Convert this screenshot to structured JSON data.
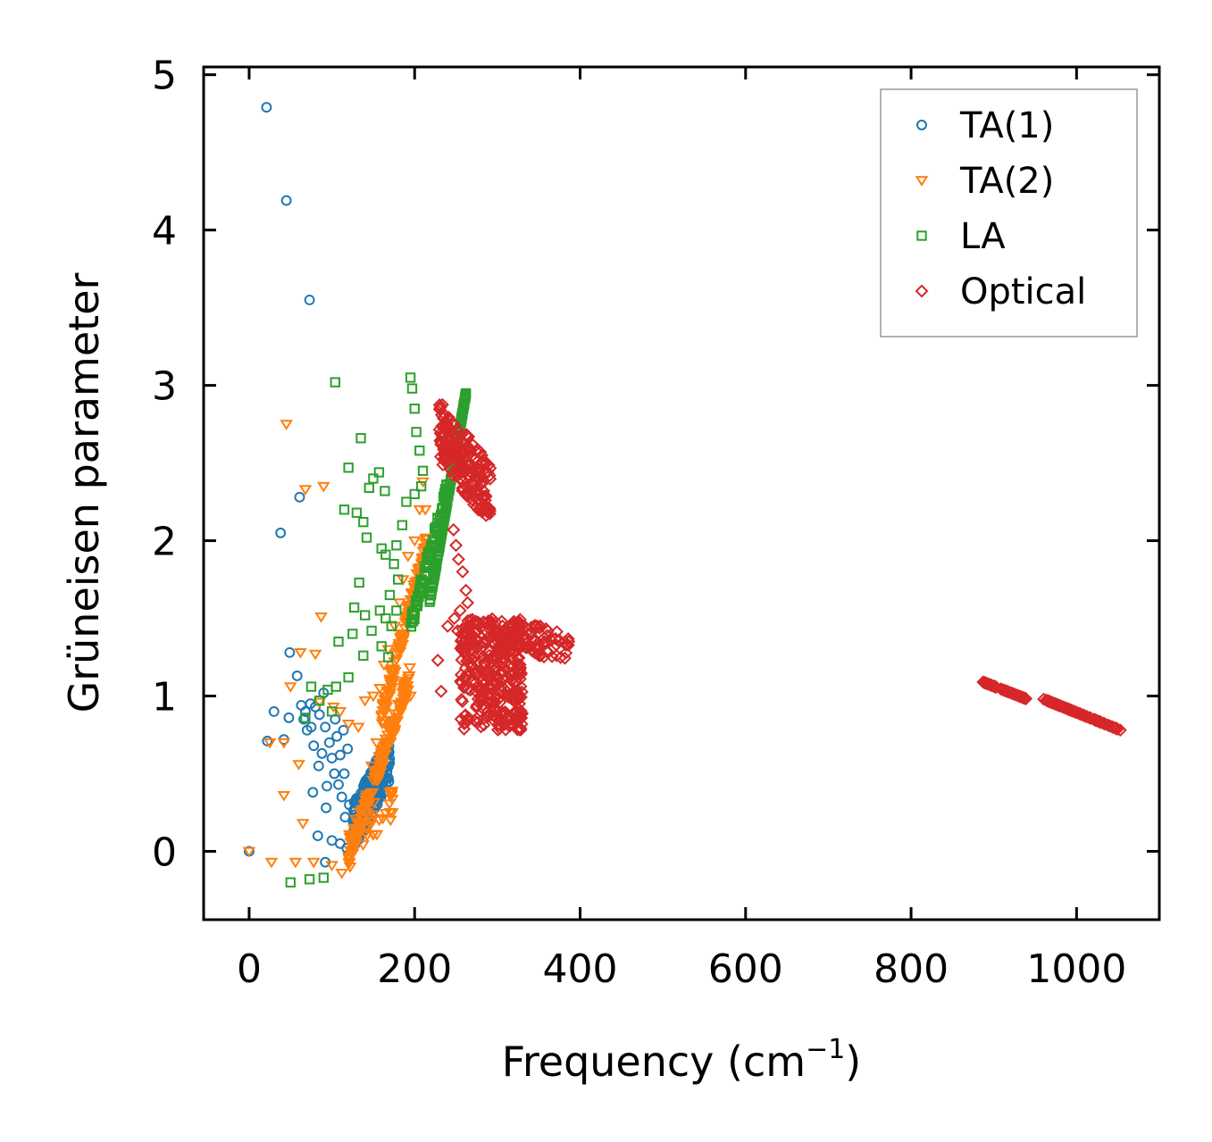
{
  "chart_data": {
    "type": "scatter",
    "title": "",
    "xlabel": "Frequency (cm",
    "xlabel_sup": "−1",
    "xlabel_end": ")",
    "ylabel": "Grüneisen parameter",
    "xlim": [
      -55,
      1100
    ],
    "ylim": [
      -0.44,
      5.05
    ],
    "xticks": [
      0,
      200,
      400,
      600,
      800,
      1000
    ],
    "yticks": [
      0,
      1,
      2,
      3,
      4,
      5
    ],
    "legend_position": "top-right",
    "series": [
      {
        "name": "TA(1)",
        "marker": "circle",
        "color": "#1f77b4",
        "points": [
          [
            0,
            0
          ],
          [
            21,
            4.79
          ],
          [
            45,
            4.19
          ],
          [
            73,
            3.55
          ],
          [
            61,
            2.28
          ],
          [
            38,
            2.05
          ],
          [
            49,
            1.28
          ],
          [
            58,
            1.13
          ],
          [
            90,
            1.02
          ],
          [
            104,
            0.85
          ],
          [
            30,
            0.9
          ],
          [
            22,
            0.71
          ],
          [
            42,
            0.72
          ],
          [
            48,
            0.86
          ],
          [
            63,
            0.94
          ],
          [
            68,
            0.9
          ],
          [
            74,
            0.95
          ],
          [
            80,
            0.93
          ],
          [
            85,
            0.88
          ],
          [
            92,
            0.8
          ],
          [
            97,
            0.7
          ],
          [
            100,
            0.6
          ],
          [
            103,
            0.5
          ],
          [
            108,
            0.43
          ],
          [
            112,
            0.35
          ],
          [
            116,
            0.22
          ],
          [
            84,
            0.55
          ],
          [
            88,
            0.63
          ],
          [
            94,
            0.42
          ],
          [
            77,
            0.38
          ],
          [
            93,
            0.28
          ],
          [
            83,
            0.1
          ],
          [
            100,
            0.07
          ],
          [
            110,
            0.05
          ],
          [
            92,
            -0.07
          ],
          [
            118,
            0.02
          ],
          [
            124,
            0.1
          ],
          [
            127,
            0.2
          ],
          [
            121,
            0.3
          ],
          [
            115,
            0.5
          ],
          [
            110,
            0.62
          ],
          [
            106,
            0.74
          ],
          [
            114,
            0.78
          ],
          [
            119,
            0.66
          ],
          [
            75,
            0.8
          ],
          [
            70,
            0.78
          ],
          [
            78,
            0.68
          ],
          [
            66,
            0.85
          ]
        ],
        "clusters": [
          {
            "x": [
              125,
              170
            ],
            "y": [
              0.0,
              0.75
            ],
            "n": 260,
            "slope": 0.6
          }
        ]
      },
      {
        "name": "TA(2)",
        "marker": "triangle-down",
        "color": "#ff7f0e",
        "points": [
          [
            0,
            0
          ],
          [
            27,
            -0.07
          ],
          [
            56,
            -0.07
          ],
          [
            78,
            -0.07
          ],
          [
            100,
            -0.09
          ],
          [
            112,
            -0.14
          ],
          [
            122,
            -0.1
          ],
          [
            45,
            2.75
          ],
          [
            68,
            2.33
          ],
          [
            90,
            2.35
          ],
          [
            87,
            1.51
          ],
          [
            62,
            1.28
          ],
          [
            80,
            1.27
          ],
          [
            50,
            1.06
          ],
          [
            85,
            0.96
          ],
          [
            60,
            0.56
          ],
          [
            42,
            0.36
          ],
          [
            65,
            0.18
          ],
          [
            42,
            0.7
          ],
          [
            25,
            0.7
          ],
          [
            102,
            0.93
          ],
          [
            110,
            0.9
          ],
          [
            120,
            0.82
          ],
          [
            132,
            0.8
          ],
          [
            140,
            0.97
          ],
          [
            150,
            1.0
          ],
          [
            158,
            1.05
          ],
          [
            163,
            1.2
          ],
          [
            168,
            1.3
          ],
          [
            176,
            1.45
          ],
          [
            182,
            1.6
          ],
          [
            186,
            1.75
          ],
          [
            192,
            1.9
          ],
          [
            200,
            2.0
          ],
          [
            206,
            2.2
          ],
          [
            210,
            2.38
          ],
          [
            213,
            2.2
          ],
          [
            175,
            1.1
          ],
          [
            165,
            0.95
          ],
          [
            195,
            1.0
          ],
          [
            154,
            0.7
          ],
          [
            148,
            0.55
          ]
        ],
        "clusters": [
          {
            "x": [
              120,
              195
            ],
            "y": [
              -0.1,
              1.2
            ],
            "n": 150,
            "slope": 0.9
          },
          {
            "x": [
              160,
              215
            ],
            "y": [
              0.8,
              2.05
            ],
            "n": 140,
            "slope": 0.9
          },
          {
            "x": [
              120,
              175
            ],
            "y": [
              -0.05,
              0.45
            ],
            "n": 40,
            "slope": 0.5
          }
        ]
      },
      {
        "name": "LA",
        "marker": "square",
        "color": "#2ca02c",
        "points": [
          [
            50,
            -0.2
          ],
          [
            73,
            -0.18
          ],
          [
            90,
            -0.17
          ],
          [
            104,
            3.02
          ],
          [
            135,
            2.66
          ],
          [
            120,
            2.47
          ],
          [
            150,
            2.4
          ],
          [
            157,
            2.44
          ],
          [
            145,
            2.34
          ],
          [
            164,
            2.32
          ],
          [
            115,
            2.2
          ],
          [
            130,
            2.18
          ],
          [
            138,
            2.12
          ],
          [
            142,
            2.02
          ],
          [
            160,
            1.95
          ],
          [
            165,
            1.91
          ],
          [
            133,
            1.73
          ],
          [
            127,
            1.57
          ],
          [
            140,
            1.52
          ],
          [
            158,
            1.55
          ],
          [
            165,
            1.5
          ],
          [
            148,
            1.42
          ],
          [
            125,
            1.4
          ],
          [
            108,
            1.35
          ],
          [
            138,
            1.26
          ],
          [
            120,
            1.12
          ],
          [
            105,
            1.06
          ],
          [
            95,
            1.04
          ],
          [
            75,
            1.06
          ],
          [
            85,
            0.97
          ],
          [
            68,
            0.86
          ],
          [
            100,
            0.9
          ],
          [
            195,
            3.05
          ],
          [
            197,
            2.98
          ],
          [
            200,
            2.85
          ],
          [
            202,
            2.7
          ],
          [
            206,
            2.58
          ],
          [
            210,
            2.45
          ],
          [
            208,
            2.35
          ],
          [
            200,
            2.3
          ],
          [
            190,
            2.25
          ],
          [
            185,
            2.1
          ],
          [
            178,
            1.97
          ],
          [
            175,
            1.85
          ],
          [
            180,
            1.75
          ],
          [
            170,
            1.65
          ],
          [
            178,
            1.55
          ],
          [
            172,
            1.45
          ],
          [
            160,
            1.32
          ],
          [
            168,
            1.25
          ]
        ],
        "clusters": [
          {
            "x": [
              218,
              262
            ],
            "y": [
              1.6,
              2.95
            ],
            "n": 220,
            "slope": 1.0
          },
          {
            "x": [
              195,
              240
            ],
            "y": [
              1.4,
              2.4
            ],
            "n": 90,
            "slope": 0.9
          }
        ]
      },
      {
        "name": "Optical",
        "marker": "diamond",
        "color": "#d62728",
        "points": [
          [
            228,
            1.23
          ],
          [
            232,
            1.03
          ],
          [
            247,
            2.07
          ],
          [
            250,
            1.97
          ],
          [
            253,
            1.88
          ],
          [
            258,
            1.8
          ],
          [
            262,
            1.68
          ],
          [
            264,
            1.6
          ],
          [
            255,
            1.55
          ],
          [
            248,
            1.5
          ],
          [
            240,
            1.45
          ],
          [
            252,
            1.42
          ],
          [
            260,
            1.4
          ]
        ],
        "clusters": [
          {
            "x": [
              230,
              292
            ],
            "y": [
              2.1,
              2.9
            ],
            "n": 200,
            "slope": -0.5
          },
          {
            "x": [
              255,
              330
            ],
            "y": [
              0.78,
              1.5
            ],
            "n": 330,
            "slope": 0.0
          },
          {
            "x": [
              300,
              388
            ],
            "y": [
              1.22,
              1.5
            ],
            "n": 80,
            "slope": -0.3
          },
          {
            "x": [
              887,
              940
            ],
            "y": [
              0.98,
              1.09
            ],
            "n": 60,
            "slope": -1.0
          },
          {
            "x": [
              960,
              1053
            ],
            "y": [
              0.78,
              0.98
            ],
            "n": 110,
            "slope": -1.0
          }
        ]
      }
    ]
  }
}
